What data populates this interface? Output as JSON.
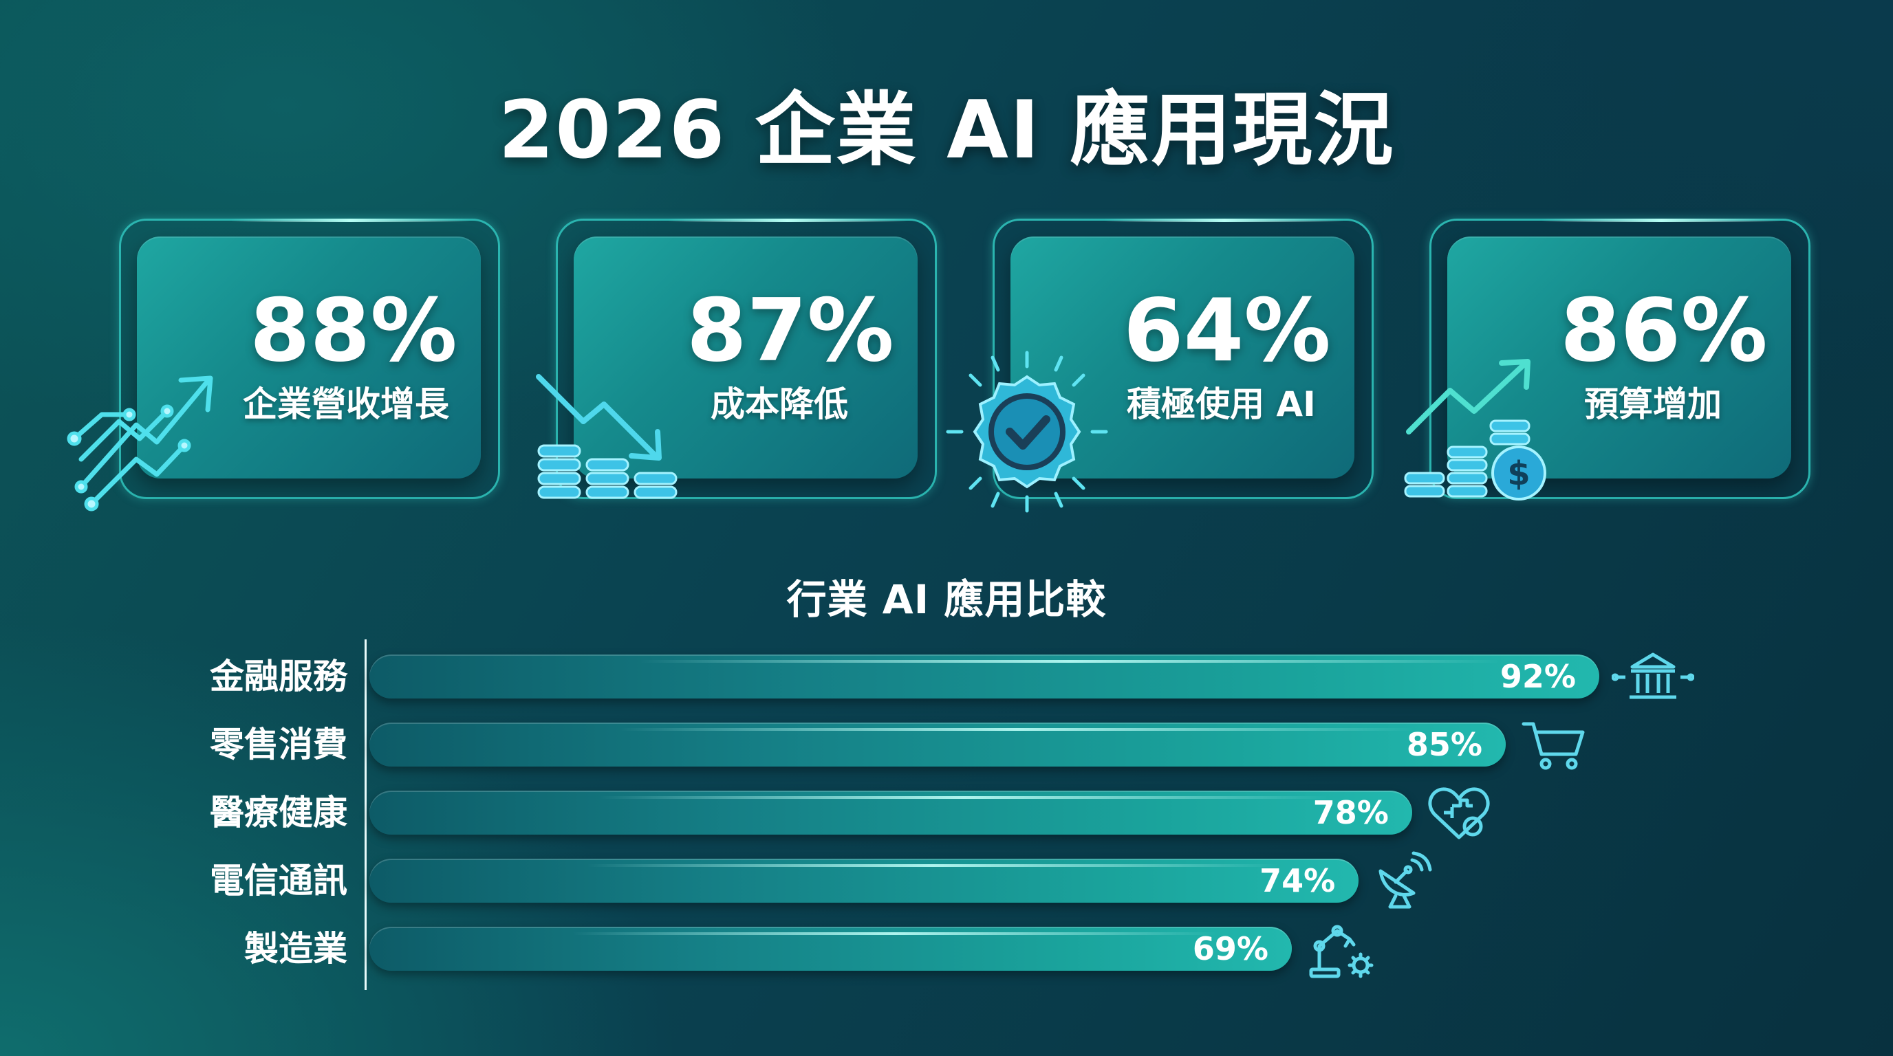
{
  "title": "2026 企業 AI 應用現況",
  "stats": [
    {
      "value": "88%",
      "label": "企業營收增長",
      "icon": "growth-circuit-arrow-icon"
    },
    {
      "value": "87%",
      "label": "成本降低",
      "icon": "coins-down-arrow-icon"
    },
    {
      "value": "64%",
      "label": "積極使用 AI",
      "icon": "check-badge-icon"
    },
    {
      "value": "86%",
      "label": "預算增加",
      "icon": "coins-dollar-up-arrow-icon"
    }
  ],
  "colors": {
    "accent": "#22b8ae",
    "glow": "#3fd8f0",
    "text": "#ffffff"
  },
  "chart_data": {
    "type": "bar",
    "orientation": "horizontal",
    "title": "行業 AI 應用比較",
    "categories": [
      "金融服務",
      "零售消費",
      "醫療健康",
      "電信通訊",
      "製造業"
    ],
    "values": [
      92,
      85,
      78,
      74,
      69
    ],
    "value_labels": [
      "92%",
      "85%",
      "78%",
      "74%",
      "69%"
    ],
    "icons": [
      "bank-icon",
      "shopping-cart-icon",
      "heart-medical-cross-icon",
      "satellite-dish-icon",
      "robot-arm-gear-icon"
    ],
    "xlim": [
      0,
      100
    ],
    "grid": false,
    "legend": "none"
  }
}
